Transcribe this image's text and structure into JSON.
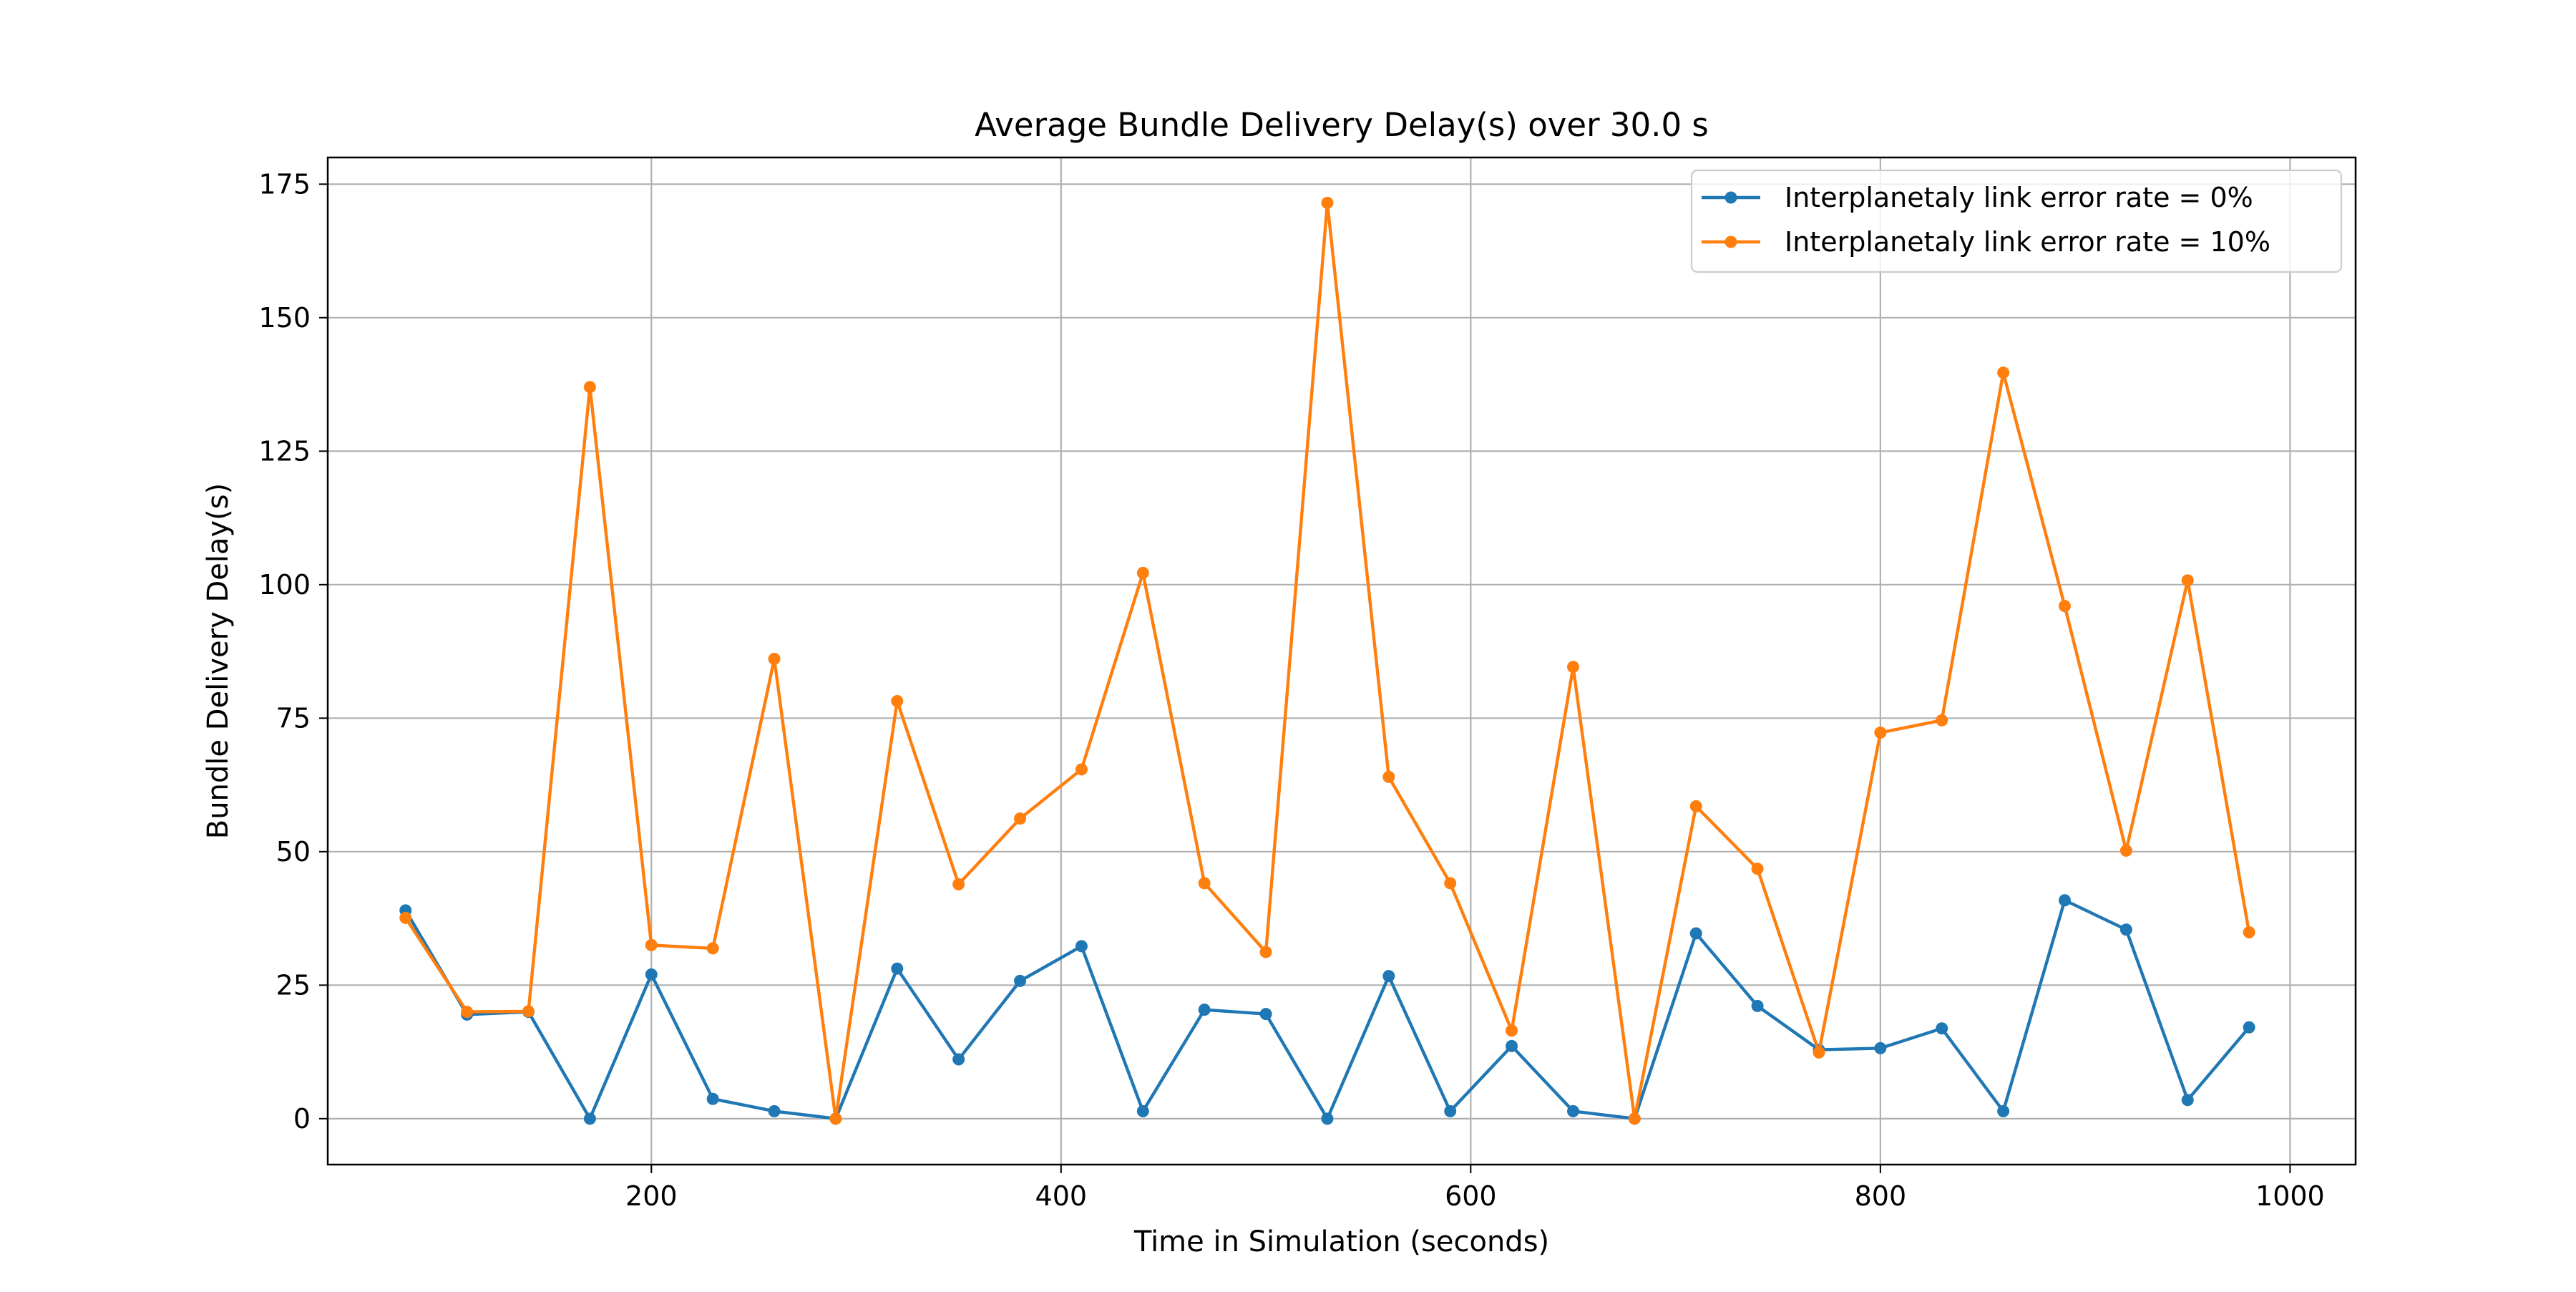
{
  "chart_data": {
    "type": "line",
    "title": "Average Bundle Delivery Delay(s) over 30.0 s",
    "xlabel": "Time in Simulation (seconds)",
    "ylabel": "Bundle Delivery Delay(s)",
    "xlim": [
      42,
      1032
    ],
    "ylim": [
      -8.6,
      180.0
    ],
    "xticks": [
      200,
      400,
      600,
      800,
      1000
    ],
    "yticks": [
      0,
      25,
      50,
      75,
      100,
      125,
      150,
      175
    ],
    "grid": true,
    "legend_position": "top-right",
    "x": [
      80,
      110,
      140,
      170,
      200,
      230,
      260,
      290,
      320,
      350,
      380,
      410,
      440,
      470,
      500,
      530,
      560,
      590,
      620,
      650,
      680,
      710,
      740,
      770,
      800,
      830,
      860,
      890,
      920,
      950,
      980
    ],
    "series": [
      {
        "name": "Interplanetaly link error rate = 0%",
        "color": "#1f77b4",
        "values": [
          39.0,
          19.5,
          20.0,
          0.0,
          27.0,
          3.7,
          1.4,
          0.0,
          28.1,
          11.1,
          25.8,
          32.3,
          1.4,
          20.4,
          19.6,
          0.0,
          26.7,
          1.4,
          13.6,
          1.4,
          0.0,
          34.7,
          21.1,
          12.9,
          13.2,
          16.9,
          1.4,
          40.9,
          35.4,
          3.5,
          17.1
        ]
      },
      {
        "name": "Interplanetaly link error rate = 10%",
        "color": "#ff7f0e",
        "values": [
          37.6,
          20.0,
          20.1,
          137.0,
          32.5,
          31.9,
          86.1,
          0.0,
          78.2,
          43.9,
          56.2,
          65.4,
          102.2,
          44.1,
          31.2,
          171.5,
          64.0,
          44.1,
          16.5,
          84.6,
          0.0,
          58.5,
          46.8,
          12.4,
          72.3,
          74.6,
          139.7,
          96.0,
          50.2,
          100.8,
          34.9
        ]
      }
    ]
  }
}
